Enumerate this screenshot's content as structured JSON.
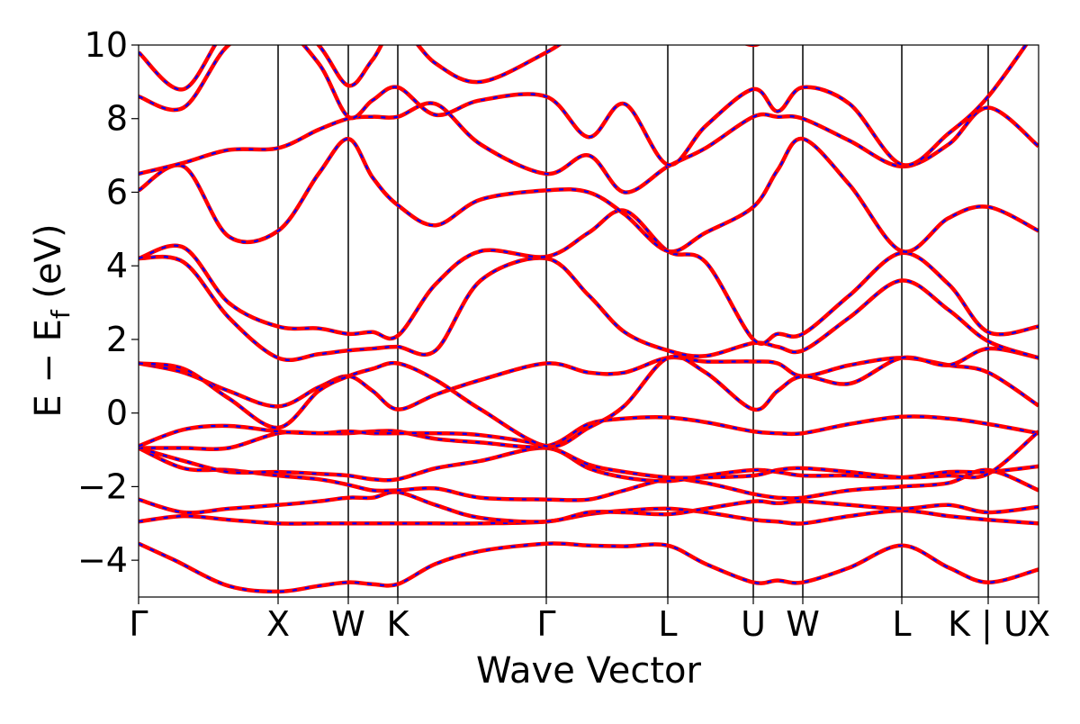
{
  "chart_data": {
    "type": "line",
    "title": "",
    "xlabel": "Wave Vector",
    "ylabel": "E − E",
    "ylabel_sub": "f",
    "ylabel_unit": "(eV)",
    "ylim": [
      -5,
      10
    ],
    "yticks": [
      -4,
      -2,
      0,
      2,
      4,
      6,
      8,
      10
    ],
    "ytick_labels": [
      "−4",
      "−2",
      "0",
      "2",
      "4",
      "6",
      "8",
      "10"
    ],
    "xlim": [
      0,
      1
    ],
    "kpoints": [
      {
        "label": "Γ",
        "x": 0.0
      },
      {
        "label": "X",
        "x": 0.155
      },
      {
        "label": "W",
        "x": 0.233
      },
      {
        "label": "K",
        "x": 0.288
      },
      {
        "label": "Γ",
        "x": 0.453
      },
      {
        "label": "L",
        "x": 0.588
      },
      {
        "label": "U",
        "x": 0.683
      },
      {
        "label": "W",
        "x": 0.738
      },
      {
        "label": "L",
        "x": 0.848
      },
      {
        "label": "K | U",
        "x": 0.944
      },
      {
        "label": "X",
        "x": 1.0
      }
    ],
    "grid": false,
    "series_colors": {
      "solid": "#ff0000",
      "dashed": "#0000ff"
    },
    "bands": [
      {
        "x": [
          0,
          0.04,
          0.1,
          0.155,
          0.2,
          0.233,
          0.26,
          0.288,
          0.33,
          0.38,
          0.453,
          0.5,
          0.54,
          0.588,
          0.63,
          0.683,
          0.71,
          0.738,
          0.79,
          0.848,
          0.9,
          0.944,
          1.0
        ],
        "y": [
          -3.55,
          -4.0,
          -4.7,
          -4.85,
          -4.7,
          -4.6,
          -4.65,
          -4.65,
          -4.1,
          -3.75,
          -3.55,
          -3.6,
          -3.62,
          -3.6,
          -4.1,
          -4.6,
          -4.55,
          -4.6,
          -4.2,
          -3.6,
          -4.2,
          -4.6,
          -4.25
        ]
      },
      {
        "x": [
          0,
          0.05,
          0.1,
          0.155,
          0.2,
          0.233,
          0.26,
          0.288,
          0.33,
          0.38,
          0.453,
          0.5,
          0.54,
          0.588,
          0.63,
          0.683,
          0.71,
          0.738,
          0.79,
          0.848,
          0.9,
          0.944,
          1.0
        ],
        "y": [
          -2.95,
          -2.8,
          -2.9,
          -3.0,
          -3.0,
          -3.0,
          -3.0,
          -3.0,
          -3.0,
          -3.0,
          -2.95,
          -2.75,
          -2.65,
          -2.6,
          -2.7,
          -2.9,
          -2.95,
          -3.0,
          -2.8,
          -2.65,
          -2.8,
          -2.9,
          -3.0
        ]
      },
      {
        "x": [
          0,
          0.05,
          0.1,
          0.155,
          0.2,
          0.233,
          0.26,
          0.288,
          0.33,
          0.38,
          0.453,
          0.5,
          0.54,
          0.588,
          0.63,
          0.683,
          0.71,
          0.738,
          0.79,
          0.848,
          0.9,
          0.944,
          1.0
        ],
        "y": [
          -2.35,
          -2.7,
          -2.6,
          -2.5,
          -2.4,
          -2.3,
          -2.3,
          -2.15,
          -2.5,
          -2.85,
          -2.95,
          -2.7,
          -2.7,
          -2.75,
          -2.6,
          -2.4,
          -2.45,
          -2.4,
          -2.5,
          -2.6,
          -2.5,
          -2.7,
          -2.55
        ]
      },
      {
        "x": [
          0,
          0.05,
          0.1,
          0.155,
          0.2,
          0.233,
          0.26,
          0.288,
          0.33,
          0.38,
          0.453,
          0.5,
          0.54,
          0.588,
          0.63,
          0.683,
          0.71,
          0.738,
          0.79,
          0.848,
          0.9,
          0.944,
          1.0
        ],
        "y": [
          -0.95,
          -1.5,
          -1.55,
          -1.7,
          -1.8,
          -1.95,
          -2.1,
          -2.1,
          -2.05,
          -2.3,
          -2.35,
          -2.35,
          -2.1,
          -1.8,
          -1.9,
          -2.2,
          -2.3,
          -2.3,
          -2.1,
          -2.0,
          -1.9,
          -1.55,
          -2.1
        ]
      },
      {
        "x": [
          0,
          0.05,
          0.1,
          0.155,
          0.2,
          0.233,
          0.26,
          0.288,
          0.33,
          0.38,
          0.453,
          0.5,
          0.54,
          0.588,
          0.63,
          0.683,
          0.71,
          0.738,
          0.79,
          0.848,
          0.9,
          0.944,
          1.0
        ],
        "y": [
          -0.95,
          -1.3,
          -1.6,
          -1.6,
          -1.65,
          -1.7,
          -1.8,
          -1.8,
          -1.5,
          -1.3,
          -0.95,
          -1.5,
          -1.75,
          -1.85,
          -1.7,
          -1.55,
          -1.6,
          -1.7,
          -1.7,
          -1.75,
          -1.6,
          -1.6,
          -1.45
        ]
      },
      {
        "x": [
          0,
          0.05,
          0.1,
          0.155,
          0.2,
          0.233,
          0.26,
          0.288,
          0.33,
          0.38,
          0.453,
          0.5,
          0.54,
          0.588,
          0.63,
          0.683,
          0.71,
          0.738,
          0.79,
          0.848,
          0.9,
          0.944,
          1.0
        ],
        "y": [
          -0.95,
          -0.95,
          -0.95,
          -0.55,
          -0.55,
          -0.55,
          -0.5,
          -0.5,
          -0.7,
          -0.8,
          -0.9,
          -0.3,
          -0.15,
          -0.12,
          -0.25,
          -0.5,
          -0.55,
          -0.55,
          -0.3,
          -0.1,
          -0.15,
          -0.3,
          -0.55
        ]
      },
      {
        "x": [
          0,
          0.05,
          0.1,
          0.155,
          0.2,
          0.233,
          0.26,
          0.288,
          0.33,
          0.38,
          0.453,
          0.5,
          0.54,
          0.588,
          0.63,
          0.683,
          0.71,
          0.738,
          0.79,
          0.848,
          0.9,
          0.944,
          1.0
        ],
        "y": [
          -0.9,
          -0.45,
          -0.35,
          -0.5,
          -0.55,
          -0.5,
          -0.55,
          -0.55,
          -0.55,
          -0.6,
          -0.9,
          -1.4,
          -1.6,
          -1.75,
          -1.75,
          -1.7,
          -1.55,
          -1.5,
          -1.6,
          -1.75,
          -1.7,
          -1.65,
          -0.5
        ]
      },
      {
        "x": [
          0,
          0.05,
          0.1,
          0.155,
          0.2,
          0.233,
          0.26,
          0.288,
          0.33,
          0.38,
          0.453,
          0.5,
          0.54,
          0.588,
          0.63,
          0.683,
          0.71,
          0.738,
          0.79,
          0.848,
          0.9,
          0.944,
          1.0
        ],
        "y": [
          1.35,
          1.1,
          0.6,
          0.18,
          0.7,
          1.0,
          0.6,
          0.1,
          0.5,
          0.9,
          1.35,
          1.1,
          1.1,
          1.5,
          1.4,
          1.4,
          1.35,
          1.0,
          1.3,
          1.5,
          1.3,
          1.1,
          0.2
        ]
      },
      {
        "x": [
          0,
          0.05,
          0.1,
          0.155,
          0.2,
          0.233,
          0.26,
          0.288,
          0.33,
          0.38,
          0.453,
          0.5,
          0.54,
          0.588,
          0.63,
          0.683,
          0.71,
          0.738,
          0.79,
          0.848,
          0.9,
          0.944,
          1.0
        ],
        "y": [
          1.35,
          1.2,
          0.4,
          -0.4,
          0.6,
          1.0,
          1.2,
          1.35,
          0.9,
          0.1,
          -0.9,
          -0.4,
          0.2,
          1.5,
          1.1,
          0.1,
          0.6,
          1.0,
          0.8,
          1.5,
          1.3,
          1.75,
          1.5
        ]
      },
      {
        "x": [
          0,
          0.05,
          0.1,
          0.155,
          0.2,
          0.233,
          0.26,
          0.288,
          0.33,
          0.38,
          0.453,
          0.5,
          0.54,
          0.588,
          0.63,
          0.683,
          0.71,
          0.738,
          0.79,
          0.848,
          0.9,
          0.944,
          1.0
        ],
        "y": [
          4.2,
          4.1,
          2.6,
          1.5,
          1.6,
          1.7,
          1.75,
          1.8,
          1.7,
          3.6,
          4.2,
          3.2,
          2.2,
          1.7,
          1.55,
          1.9,
          1.8,
          1.7,
          2.6,
          3.6,
          2.8,
          1.95,
          1.5
        ]
      },
      {
        "x": [
          0,
          0.05,
          0.1,
          0.155,
          0.2,
          0.233,
          0.26,
          0.288,
          0.33,
          0.38,
          0.453,
          0.5,
          0.54,
          0.588,
          0.63,
          0.683,
          0.71,
          0.738,
          0.79,
          0.848,
          0.9,
          0.944,
          1.0
        ],
        "y": [
          4.2,
          4.5,
          3.0,
          2.35,
          2.3,
          2.15,
          2.2,
          2.1,
          3.5,
          4.4,
          4.25,
          4.9,
          5.5,
          4.4,
          4.1,
          2.0,
          2.15,
          2.15,
          3.2,
          4.35,
          3.5,
          2.2,
          2.35
        ]
      },
      {
        "x": [
          0,
          0.05,
          0.1,
          0.155,
          0.2,
          0.233,
          0.26,
          0.288,
          0.33,
          0.38,
          0.453,
          0.5,
          0.54,
          0.588,
          0.63,
          0.683,
          0.71,
          0.738,
          0.79,
          0.848,
          0.9,
          0.944,
          1.0
        ],
        "y": [
          6.05,
          6.7,
          4.8,
          4.95,
          6.5,
          7.45,
          6.4,
          5.65,
          5.1,
          5.8,
          6.05,
          6.0,
          5.4,
          4.4,
          4.9,
          5.6,
          6.6,
          7.45,
          6.2,
          4.4,
          5.3,
          5.6,
          4.95
        ]
      },
      {
        "x": [
          0,
          0.05,
          0.1,
          0.155,
          0.2,
          0.233,
          0.26,
          0.288,
          0.33,
          0.38,
          0.453,
          0.5,
          0.54,
          0.588,
          0.63,
          0.683,
          0.71,
          0.738,
          0.79,
          0.848,
          0.9,
          0.944,
          1.0
        ],
        "y": [
          6.5,
          6.8,
          7.15,
          7.2,
          7.7,
          8.0,
          8.05,
          8.05,
          8.4,
          7.3,
          6.5,
          7.0,
          6.0,
          6.7,
          7.2,
          8.05,
          8.05,
          8.0,
          7.4,
          6.7,
          7.3,
          8.3,
          7.25
        ]
      },
      {
        "x": [
          0,
          0.05,
          0.1,
          0.155,
          0.2,
          0.233,
          0.26,
          0.288,
          0.33,
          0.38,
          0.453,
          0.5,
          0.54,
          0.588,
          0.63,
          0.683,
          0.71,
          0.738,
          0.79,
          0.848,
          0.9,
          0.944,
          1.0
        ],
        "y": [
          8.6,
          8.3,
          10.0,
          10.5,
          9.5,
          8.05,
          8.5,
          8.85,
          8.1,
          8.5,
          8.6,
          7.5,
          8.4,
          6.75,
          7.8,
          8.8,
          8.2,
          8.85,
          8.4,
          6.75,
          7.6,
          8.6,
          10.5
        ]
      },
      {
        "x": [
          0,
          0.05,
          0.1,
          0.155,
          0.2,
          0.233,
          0.26,
          0.288,
          0.33,
          0.38,
          0.453,
          0.5,
          0.54,
          0.588,
          0.63,
          0.683,
          0.71,
          0.738,
          0.79,
          0.848,
          0.9,
          0.944,
          1.0
        ],
        "y": [
          9.8,
          8.8,
          10.5,
          11.0,
          10.0,
          8.9,
          9.6,
          10.5,
          9.5,
          9.0,
          9.8,
          10.5,
          10.5,
          10.5,
          10.5,
          10.0,
          10.5,
          10.5,
          10.5,
          10.5,
          10.5,
          10.5,
          10.5
        ]
      }
    ]
  }
}
